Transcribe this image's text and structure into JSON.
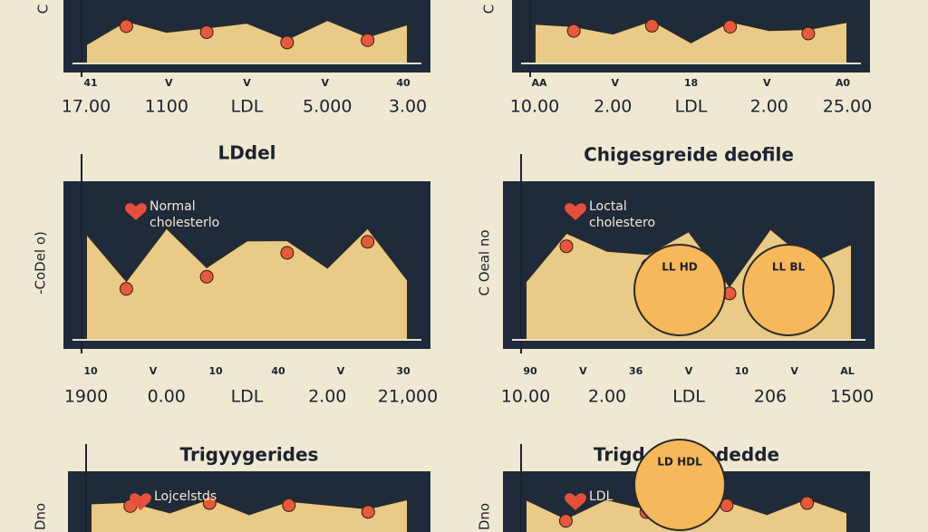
{
  "panels": [
    {
      "y_label": "C",
      "tick_marks": [
        "41",
        "V",
        "V",
        "V",
        "40"
      ],
      "x_labels": [
        "17.00",
        "1100",
        "LDL",
        "5.000",
        "3.00"
      ]
    },
    {
      "y_label": "C",
      "tick_marks": [
        "AA",
        "V",
        "18",
        "V",
        "A0"
      ],
      "x_labels": [
        "10.00",
        "2.00",
        "LDL",
        "2.00",
        "25.00"
      ]
    },
    {
      "title": "LDdel",
      "y_label": "-CoDel o)",
      "annotation": [
        "Normal",
        "cholesterlo"
      ],
      "tick_marks": [
        "10",
        "V",
        "10",
        "40",
        "V",
        "30"
      ],
      "x_labels": [
        "1900",
        "0.00",
        "LDL",
        "2.00",
        "21,000"
      ]
    },
    {
      "title": "Chigesgreide deofile",
      "y_label": "C Oeal no",
      "annotation": [
        "Loctal",
        "cholestero"
      ],
      "circle_labels": [
        "LL HD",
        "LL BL"
      ],
      "tick_marks": [
        "90",
        "V",
        "36",
        "V",
        "10",
        "V",
        "AL"
      ],
      "x_labels": [
        "10.00",
        "2.00",
        "LDL",
        "206",
        "1500"
      ]
    },
    {
      "title": "Trigyygerides",
      "y_label": "Dno",
      "annotation": [
        "Lojcelstds"
      ]
    },
    {
      "title": "Trigdeyssdededde",
      "y_label": "Dno",
      "annotation": [
        "LDL"
      ],
      "circle_labels": [
        "LD HDL"
      ]
    }
  ]
}
